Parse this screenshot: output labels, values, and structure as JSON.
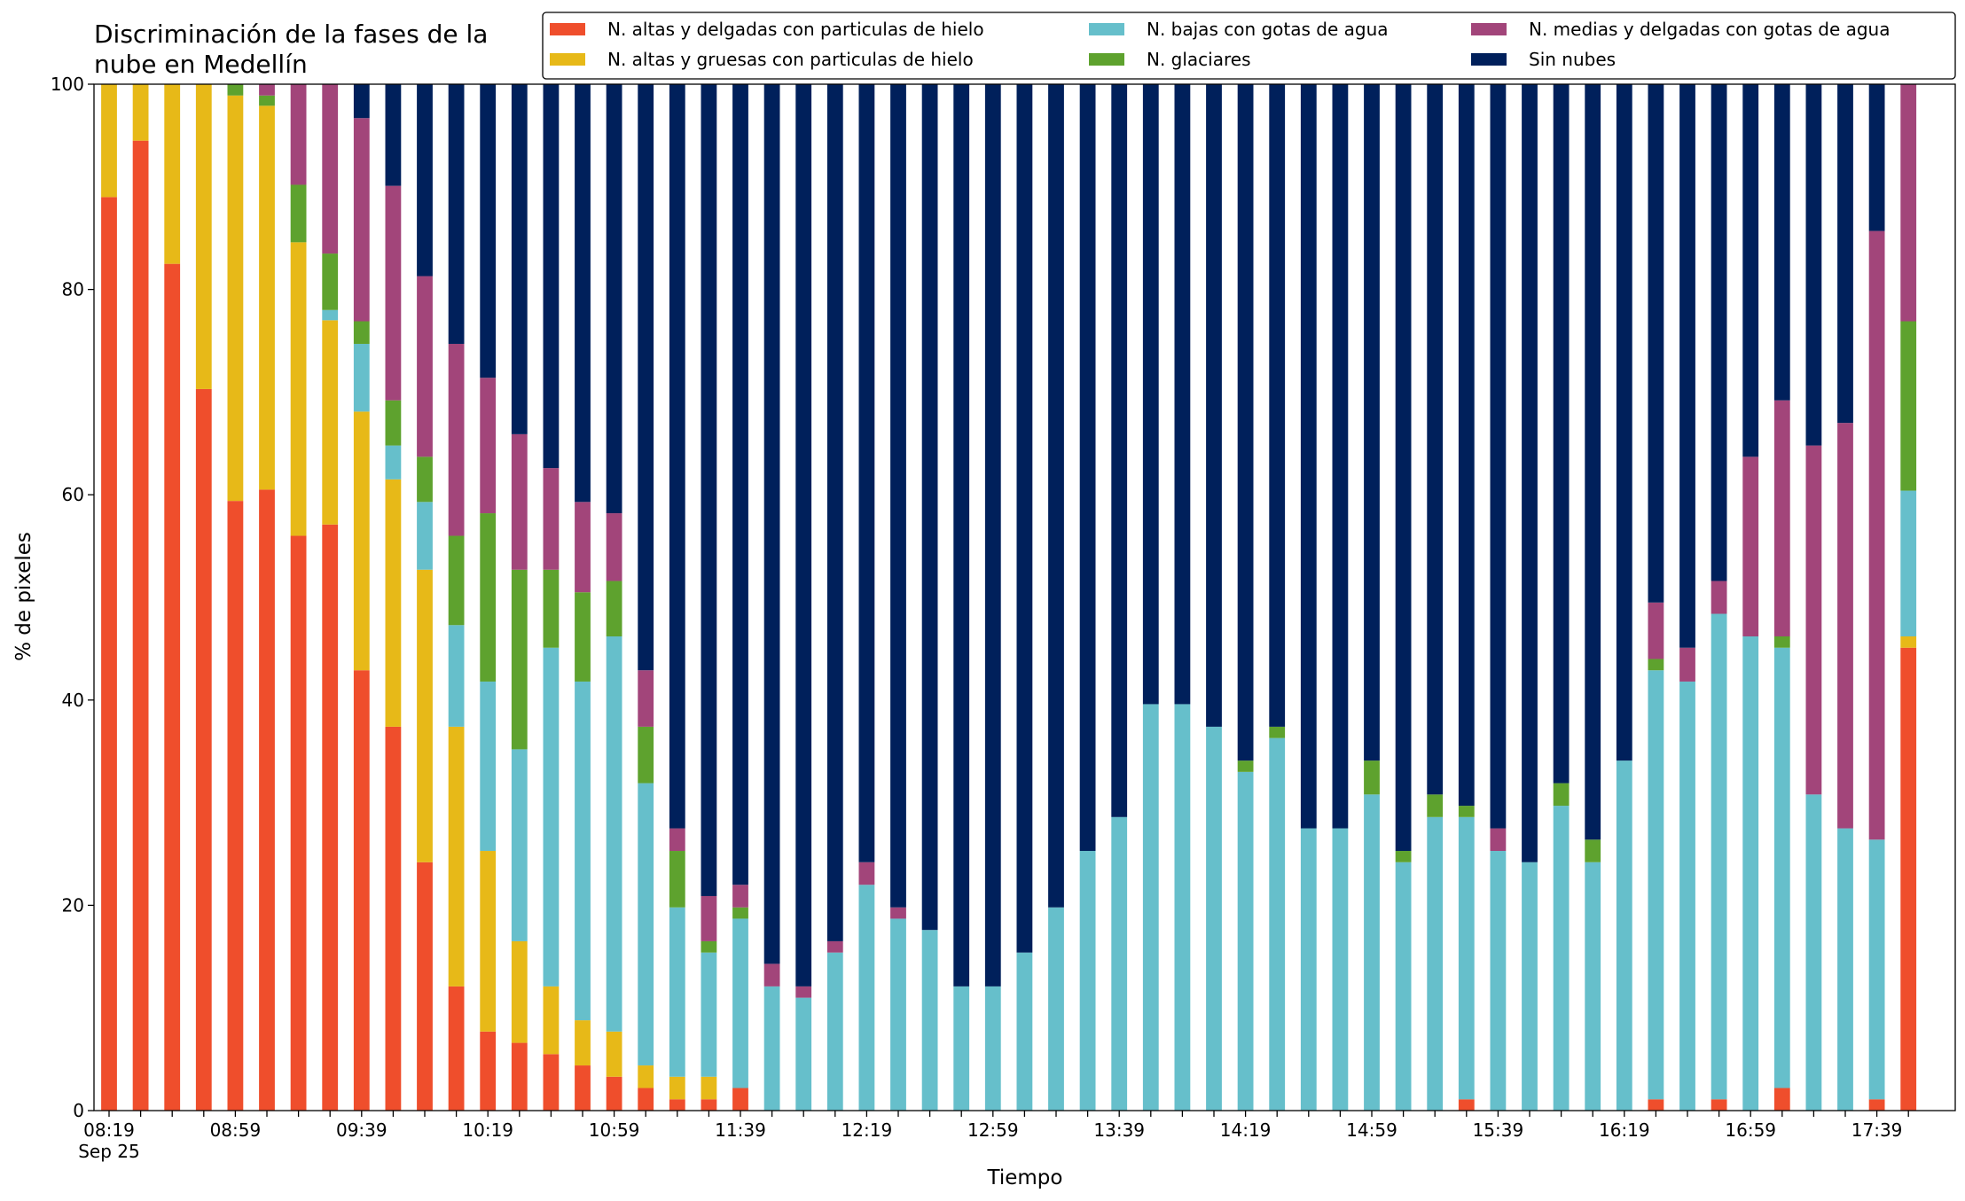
{
  "chart_data": {
    "type": "stacked_bar",
    "title": [
      "Discriminación de la fases de la",
      "nube en Medellín"
    ],
    "xlabel": "Tiempo",
    "ylabel": "% de pixeles",
    "x_sublabel": "Sep 25",
    "categories": [
      "08:19",
      null,
      null,
      null,
      "08:59",
      null,
      null,
      null,
      "09:39",
      null,
      null,
      null,
      "10:19",
      null,
      null,
      null,
      "10:59",
      null,
      null,
      null,
      "11:39",
      null,
      null,
      null,
      "12:19",
      null,
      null,
      null,
      "12:59",
      null,
      null,
      null,
      "13:39",
      null,
      null,
      null,
      "14:19",
      null,
      null,
      null,
      "14:59",
      null,
      null,
      null,
      "15:39",
      null,
      null,
      null,
      "16:19",
      null,
      null,
      null,
      "16:59",
      null,
      null,
      null,
      "17:39",
      null
    ],
    "ylim": [
      0,
      100
    ],
    "yticks": [
      0,
      20,
      40,
      60,
      80,
      100
    ],
    "grid": false,
    "legend": "upper right",
    "series": [
      {
        "name": "N. altas y delgadas con particulas de hielo",
        "color": "#ef4e2c",
        "values": [
          89,
          94.5,
          82.5,
          70.3,
          59.4,
          60.5,
          56,
          57.1,
          42.9,
          37.4,
          24.2,
          12.1,
          7.7,
          6.6,
          5.5,
          4.4,
          3.3,
          2.2,
          1.1,
          1.1,
          2.2,
          0,
          0,
          0,
          0,
          0,
          0,
          0,
          0,
          0,
          0,
          0,
          0,
          0,
          0,
          0,
          0,
          0,
          0,
          0,
          0,
          0,
          0,
          1.1,
          0,
          0,
          0,
          0,
          0,
          1.1,
          0,
          1.1,
          0,
          2.2,
          0,
          0,
          1.1,
          45.1
        ]
      },
      {
        "name": "N. altas y gruesas con particulas de hielo",
        "color": "#e7b918",
        "values": [
          11,
          5.5,
          17.5,
          29.7,
          39.5,
          37.4,
          28.6,
          19.9,
          25.2,
          24.1,
          28.5,
          25.3,
          17.6,
          9.9,
          6.6,
          4.4,
          4.4,
          2.2,
          2.2,
          2.2,
          0,
          0,
          0,
          0,
          0,
          0,
          0,
          0,
          0,
          0,
          0,
          0,
          0,
          0,
          0,
          0,
          0,
          0,
          0,
          0,
          0,
          0,
          0,
          0,
          0,
          0,
          0,
          0,
          0,
          0,
          0,
          0,
          0,
          0,
          0,
          0,
          0,
          1.1
        ]
      },
      {
        "name": "N. bajas con gotas de agua",
        "color": "#66bfcb",
        "values": [
          0,
          0,
          0,
          0,
          0,
          0,
          0,
          1,
          6.6,
          3.3,
          6.6,
          9.9,
          16.5,
          18.7,
          33,
          33,
          38.5,
          27.5,
          16.5,
          12.1,
          16.5,
          12.1,
          11,
          15.4,
          22,
          18.7,
          17.6,
          12.1,
          12.1,
          15.4,
          19.8,
          25.3,
          28.6,
          39.6,
          39.6,
          37.4,
          33,
          36.3,
          27.5,
          27.5,
          30.8,
          24.2,
          28.6,
          27.5,
          25.3,
          24.2,
          29.7,
          24.2,
          34.1,
          41.8,
          41.8,
          47.3,
          46.2,
          42.9,
          30.8,
          27.5,
          25.3,
          14.2
        ]
      },
      {
        "name": "N. glaciares",
        "color": "#5ea22e",
        "values": [
          0,
          0,
          0,
          0,
          1.1,
          1,
          5.6,
          5.5,
          2.2,
          4.4,
          4.4,
          8.7,
          16.4,
          17.5,
          7.6,
          8.7,
          5.4,
          5.5,
          5.5,
          1.1,
          1.1,
          0,
          0,
          0,
          0,
          0,
          0,
          0,
          0,
          0,
          0,
          0,
          0,
          0,
          0,
          0,
          1.1,
          1.1,
          0,
          0,
          3.3,
          1.1,
          2.2,
          1.1,
          0,
          0,
          2.2,
          2.2,
          0,
          1.1,
          0,
          0,
          0,
          1.1,
          0,
          0,
          0,
          16.5
        ]
      },
      {
        "name": "N. medias y delgadas con gotas de agua",
        "color": "#a2457a",
        "values": [
          0,
          0,
          0,
          0,
          0,
          1.1,
          9.8,
          16.5,
          19.8,
          20.9,
          17.6,
          18.7,
          13.2,
          13.2,
          9.9,
          8.8,
          6.6,
          5.5,
          2.2,
          4.4,
          2.2,
          2.2,
          1.1,
          1.1,
          2.2,
          1.1,
          0,
          0,
          0,
          0,
          0,
          0,
          0,
          0,
          0,
          0,
          0,
          0,
          0,
          0,
          0,
          0,
          0,
          0,
          2.2,
          0,
          0,
          0,
          0,
          5.5,
          3.3,
          3.2,
          17.5,
          23,
          34,
          39.5,
          59.3,
          23.1
        ]
      },
      {
        "name": "Sin nubes",
        "color": "#00205b",
        "values": [
          0,
          0,
          0,
          0,
          0,
          0,
          0,
          0,
          3.3,
          9.9,
          18.7,
          25.3,
          28.6,
          34.1,
          37.4,
          40.7,
          41.8,
          57.1,
          72.5,
          79.1,
          78,
          85.7,
          87.9,
          83.5,
          75.8,
          80.2,
          82.4,
          87.9,
          87.9,
          84.6,
          80.2,
          74.7,
          71.4,
          60.4,
          60.4,
          62.6,
          65.9,
          62.6,
          72.5,
          72.5,
          65.9,
          74.7,
          69.2,
          70.3,
          72.5,
          75.8,
          68.1,
          73.6,
          65.9,
          50.5,
          54.9,
          48.4,
          36.3,
          30.8,
          35.2,
          33,
          14.3,
          0
        ]
      }
    ]
  }
}
